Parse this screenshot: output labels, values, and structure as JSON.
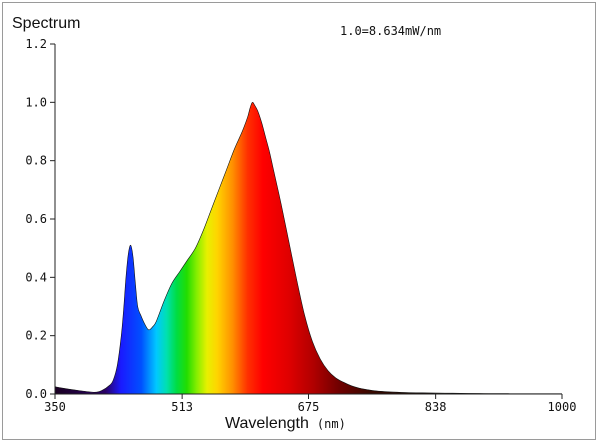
{
  "chart_data": {
    "type": "area",
    "title": "Spectrum",
    "annotation": "1.0=8.634mW/nm",
    "xlabel": "Wavelength",
    "xlabel_unit": "(nm)",
    "xlim": [
      350,
      1000
    ],
    "ylim": [
      0,
      1.2
    ],
    "x_ticks": [
      350,
      513,
      675,
      838,
      1000
    ],
    "y_ticks": [
      "0.0",
      "0.2",
      "0.4",
      "0.6",
      "0.8",
      "1.0",
      "1.2"
    ],
    "grid": false,
    "fill": "visible-spectrum-gradient",
    "series": [
      {
        "x": [
          350,
          360,
          380,
          400,
          410,
          420,
          425,
          430,
          435,
          438,
          441,
          444,
          447,
          450,
          453,
          456,
          460,
          465,
          470,
          475,
          480,
          490,
          500,
          510,
          520,
          530,
          540,
          550,
          560,
          570,
          580,
          590,
          597,
          600,
          603,
          606,
          610,
          615,
          620,
          625,
          630,
          640,
          650,
          660,
          670,
          680,
          690,
          700,
          710,
          720,
          730,
          740,
          750,
          760,
          780,
          800,
          820,
          850,
          880,
          920,
          960,
          1000
        ],
        "y": [
          0.025,
          0.02,
          0.012,
          0.006,
          0.012,
          0.03,
          0.05,
          0.1,
          0.2,
          0.29,
          0.4,
          0.48,
          0.51,
          0.47,
          0.38,
          0.3,
          0.27,
          0.24,
          0.22,
          0.23,
          0.25,
          0.32,
          0.38,
          0.42,
          0.46,
          0.5,
          0.56,
          0.63,
          0.7,
          0.77,
          0.84,
          0.9,
          0.95,
          0.98,
          1.0,
          0.99,
          0.97,
          0.93,
          0.88,
          0.83,
          0.77,
          0.65,
          0.52,
          0.39,
          0.27,
          0.18,
          0.12,
          0.08,
          0.055,
          0.04,
          0.028,
          0.02,
          0.015,
          0.011,
          0.007,
          0.005,
          0.004,
          0.003,
          0.002,
          0.0015,
          0.001,
          0.001
        ]
      }
    ]
  }
}
